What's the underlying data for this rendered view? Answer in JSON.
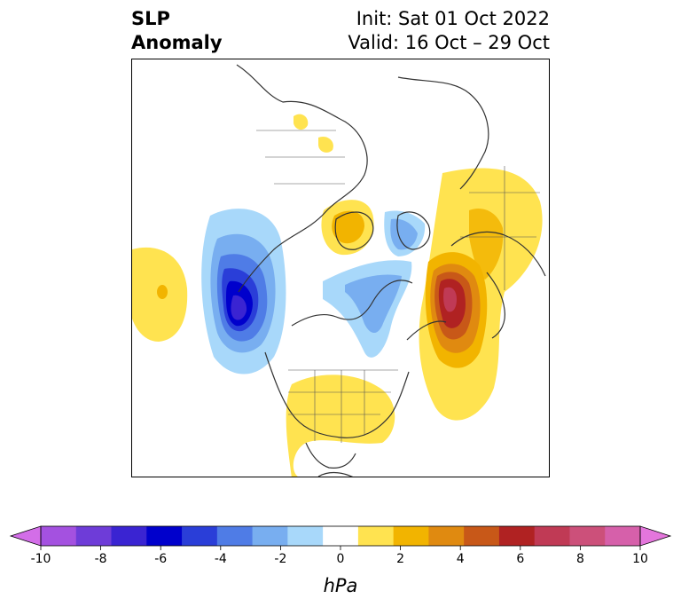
{
  "title": {
    "left_line1": "SLP",
    "left_line2": "Anomaly",
    "right_line1": "Init: Sat 01 Oct 2022",
    "right_line2": "Valid: 16 Oct – 29 Oct"
  },
  "colorbar": {
    "label": "hPa",
    "min": -10,
    "max": 10,
    "step": 2,
    "tick_labels": [
      "-10",
      "-8",
      "-6",
      "-4",
      "-2",
      "0",
      "2",
      "4",
      "6",
      "8",
      "10"
    ],
    "colors": [
      "#d36ee8",
      "#a451e0",
      "#6e3cd8",
      "#3a24d2",
      "#0000cc",
      "#2a3ed8",
      "#4f7ce6",
      "#78aef0",
      "#a8d8fa",
      "#ffffff",
      "#ffe350",
      "#f2b400",
      "#e08a10",
      "#c85818",
      "#b02222",
      "#c03a55",
      "#cc507a",
      "#d660aa",
      "#e476dc"
    ],
    "extend": "both"
  },
  "map": {
    "projection": "north-polar",
    "land_outline_color": "#333333"
  }
}
